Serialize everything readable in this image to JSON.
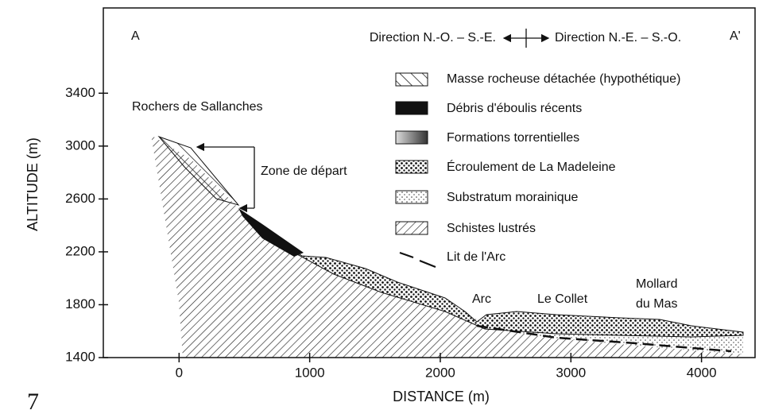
{
  "chart_data": {
    "type": "cross-section",
    "xlabel": "DISTANCE  (m)",
    "ylabel": "ALTITUDE  (m)",
    "xlim": [
      -580,
      4410
    ],
    "ylim": [
      1400,
      4045
    ],
    "xticks": [
      0,
      1000,
      2000,
      3000,
      4000
    ],
    "yticks": [
      1400,
      1800,
      2200,
      2600,
      3000,
      3400
    ],
    "section_start": "A",
    "section_end": "A'",
    "direction_left": "Direction N.-O. – S.-E.",
    "direction_right": "Direction N.-E. – S.-O.",
    "legend": [
      "Masse rocheuse détachée (hypothétique)",
      "Débris d'éboulis récents",
      "Formations torrentielles",
      "Écroulement de La Madeleine",
      "Substratum morainique",
      "Schistes lustrés",
      "Lit de l'Arc"
    ],
    "annotations": [
      "Rochers de Sallanches",
      "Zone de départ",
      "Arc",
      "Le Collet",
      "Mollard",
      "du Mas"
    ],
    "figure_number": "7"
  }
}
